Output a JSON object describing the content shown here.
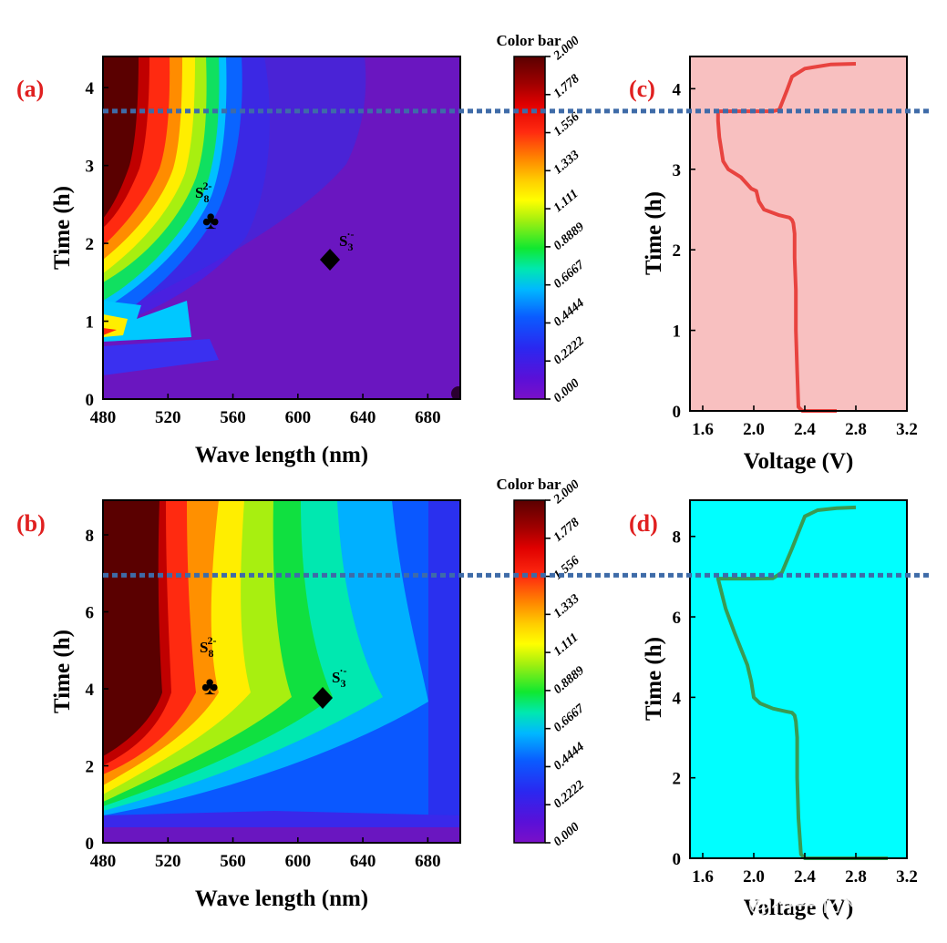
{
  "colors": {
    "panel_label": "#e02020",
    "dashed_line": "#3e6ba8",
    "voltage_c_bg": "#f8c0c0",
    "voltage_c_line": "#e8433f",
    "voltage_d_bg": "#00ffff",
    "voltage_d_line": "#3a9a52"
  },
  "watermark": "知乎 @科学材料站",
  "chart_data": [
    {
      "id": "a",
      "type": "heatmap",
      "panel_label": "(a)",
      "xlabel": "Wave length (nm)",
      "ylabel": "Time (h)",
      "xlim": [
        480,
        700
      ],
      "ylim": [
        0,
        4.4
      ],
      "xticks": [
        "480",
        "520",
        "560",
        "600",
        "640",
        "680"
      ],
      "yticks": [
        "0",
        "1",
        "2",
        "3",
        "4"
      ],
      "colorbar": {
        "title": "Color bar",
        "ticks": [
          "2.000",
          "1.778",
          "1.556",
          "1.333",
          "1.111",
          "0.8889",
          "0.6667",
          "0.4444",
          "0.2222",
          "0.000"
        ]
      },
      "annotations": [
        {
          "symbol": "♣",
          "label": "S",
          "sub": "8",
          "sup": "2-",
          "x": 547,
          "y": 2.3
        },
        {
          "symbol": "◆",
          "label": "S",
          "sub": "3",
          "sup": "·-",
          "x": 620,
          "y": 1.8
        }
      ],
      "dashed_line_time": 3.7
    },
    {
      "id": "b",
      "type": "heatmap",
      "panel_label": "(b)",
      "xlabel": "Wave length (nm)",
      "ylabel": "Time (h)",
      "xlim": [
        480,
        700
      ],
      "ylim": [
        0,
        8.9
      ],
      "xticks": [
        "480",
        "520",
        "560",
        "600",
        "640",
        "680"
      ],
      "yticks": [
        "0",
        "2",
        "4",
        "6",
        "8"
      ],
      "colorbar": {
        "title": "Color bar",
        "ticks": [
          "2.000",
          "1.778",
          "1.556",
          "1.333",
          "1.111",
          "0.8889",
          "0.6667",
          "0.4444",
          "0.2222",
          "0.000"
        ]
      },
      "annotations": [
        {
          "symbol": "♣",
          "label": "S",
          "sub": "8",
          "sup": "2-",
          "x": 546,
          "y": 4.0
        },
        {
          "symbol": "◆",
          "label": "S",
          "sub": "3",
          "sup": "·-",
          "x": 615,
          "y": 3.75
        }
      ],
      "dashed_line_time": 6.95
    },
    {
      "id": "c",
      "type": "line",
      "panel_label": "(c)",
      "xlabel": "Voltage (V)",
      "ylabel": "Time (h)",
      "xlim": [
        1.5,
        3.2
      ],
      "ylim": [
        0,
        4.4
      ],
      "xticks": [
        "1.6",
        "2.0",
        "2.4",
        "2.8",
        "3.2"
      ],
      "yticks": [
        "0",
        "1",
        "2",
        "3",
        "4"
      ],
      "series": [
        {
          "x": [
            2.65,
            2.38,
            2.35,
            2.34,
            2.33,
            2.33,
            2.32,
            2.32,
            2.31,
            2.3,
            2.28,
            2.2,
            2.08,
            2.04,
            2.02,
            1.98,
            1.9,
            1.8,
            1.76,
            1.75,
            1.73,
            1.72,
            1.72,
            1.8,
            2.0,
            2.15,
            2.2,
            2.22,
            2.24,
            2.26,
            2.3,
            2.4,
            2.6,
            2.8
          ],
          "y": [
            0.0,
            0.0,
            0.05,
            0.5,
            1.0,
            1.5,
            1.9,
            2.2,
            2.33,
            2.37,
            2.4,
            2.43,
            2.5,
            2.6,
            2.73,
            2.76,
            2.9,
            3.0,
            3.1,
            3.2,
            3.4,
            3.6,
            3.72,
            3.72,
            3.72,
            3.72,
            3.74,
            3.82,
            3.9,
            3.98,
            4.15,
            4.25,
            4.3,
            4.31
          ]
        }
      ],
      "dashed_line_time": 3.7
    },
    {
      "id": "d",
      "type": "line",
      "panel_label": "(d)",
      "xlabel": "Voltage (V)",
      "ylabel": "Time (h)",
      "xlim": [
        1.5,
        3.2
      ],
      "ylim": [
        0,
        8.9
      ],
      "xticks": [
        "1.6",
        "2.0",
        "2.4",
        "2.8",
        "3.2"
      ],
      "yticks": [
        "0",
        "2",
        "4",
        "6",
        "8"
      ],
      "series": [
        {
          "x": [
            3.05,
            2.4,
            2.37,
            2.35,
            2.34,
            2.34,
            2.33,
            2.32,
            2.3,
            2.25,
            2.15,
            2.05,
            2.0,
            1.98,
            1.95,
            1.9,
            1.85,
            1.78,
            1.72,
            1.8,
            2.0,
            2.15,
            2.22,
            2.26,
            2.3,
            2.35,
            2.4,
            2.5,
            2.65,
            2.8
          ],
          "y": [
            0.0,
            0.0,
            0.1,
            1.0,
            2.0,
            3.0,
            3.4,
            3.55,
            3.62,
            3.65,
            3.72,
            3.85,
            4.0,
            4.4,
            4.8,
            5.2,
            5.6,
            6.2,
            6.95,
            6.95,
            6.95,
            6.96,
            7.1,
            7.4,
            7.7,
            8.1,
            8.5,
            8.65,
            8.7,
            8.72
          ]
        }
      ],
      "dashed_line_time": 6.95
    }
  ]
}
